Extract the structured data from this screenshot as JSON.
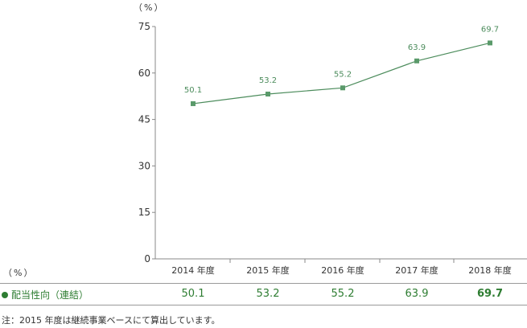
{
  "chart_data": {
    "type": "line",
    "y_unit": "（%）",
    "ylim": [
      0,
      75
    ],
    "yticks": [
      0,
      15,
      30,
      45,
      60,
      75
    ],
    "categories": [
      "2014 年度",
      "2015 年度",
      "2016 年度",
      "2017 年度",
      "2018 年度"
    ],
    "series": [
      {
        "name": "配当性向（連結）",
        "values": [
          50.1,
          53.2,
          55.2,
          63.9,
          69.7
        ]
      }
    ],
    "data_labels": [
      "50.1",
      "53.2",
      "55.2",
      "63.9",
      "69.7"
    ],
    "grid": false,
    "line_color": "#4c8c5c",
    "marker_color": "#5a9a6a"
  },
  "table": {
    "unit": "（%）",
    "row_label": "配当性向（連結）",
    "values": [
      "50.1",
      "53.2",
      "55.2",
      "63.9",
      "69.7"
    ],
    "value_color": "#2e7d32"
  },
  "footnote": "注：2015 年度は継続事業ベースにて算出しています。"
}
